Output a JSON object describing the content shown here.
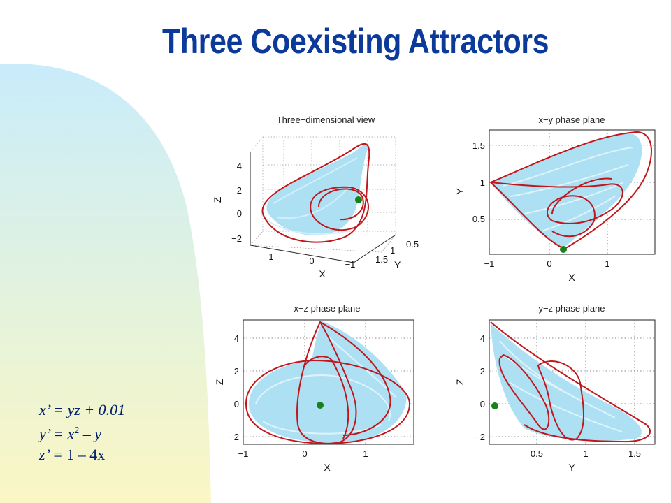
{
  "title": "Three Coexisting Attractors",
  "colors": {
    "title": "#0b3a9a",
    "attractor_fill": "#aee0f3",
    "orbit": "#c0161c",
    "fixed_point": "#16821b",
    "equations": "#00206b"
  },
  "equations": [
    {
      "lhs": "x’ = ",
      "rhs_parts": [
        "yz + 0.01"
      ]
    },
    {
      "lhs": "y’ = ",
      "rhs_parts": [
        "x",
        "2",
        " – y"
      ]
    },
    {
      "lhs": "z’ = ",
      "rhs_parts": [
        "1 – 4x"
      ]
    }
  ],
  "chart_data": [
    {
      "type": "line",
      "title": "Three−dimensional view",
      "xlabel": "X",
      "ylabel": "Y",
      "zlabel": "Z",
      "x_ticks": [
        "1",
        "0",
        "−1"
      ],
      "y_ticks": [
        "0.5",
        "1",
        "1.5"
      ],
      "z_ticks": [
        "4",
        "2",
        "0",
        "−2"
      ],
      "grid": true
    },
    {
      "type": "line",
      "title": "x−y phase plane",
      "xlabel": "X",
      "ylabel": "Y",
      "xlim": [
        -1,
        2
      ],
      "ylim": [
        0,
        1.7
      ],
      "x_ticks": [
        "−1",
        "0",
        "1"
      ],
      "y_ticks": [
        "0.5",
        "1",
        "1.5"
      ],
      "grid": true,
      "fixed_point": [
        0.25,
        0.06
      ]
    },
    {
      "type": "line",
      "title": "x−z phase plane",
      "xlabel": "X",
      "ylabel": "Z",
      "xlim": [
        -1,
        1.5
      ],
      "ylim": [
        -2.5,
        5
      ],
      "x_ticks": [
        "−1",
        "0",
        "1"
      ],
      "y_ticks": [
        "4",
        "2",
        "0",
        "−2"
      ],
      "grid": true,
      "fixed_point": [
        0.25,
        0
      ]
    },
    {
      "type": "line",
      "title": "y−z phase plane",
      "xlabel": "Y",
      "ylabel": "Z",
      "xlim": [
        0,
        1.7
      ],
      "ylim": [
        -2.5,
        5
      ],
      "x_ticks": [
        "0.5",
        "1",
        "1.5"
      ],
      "y_ticks": [
        "4",
        "2",
        "0",
        "−2"
      ],
      "grid": true,
      "fixed_point": [
        0.06,
        0
      ]
    }
  ]
}
